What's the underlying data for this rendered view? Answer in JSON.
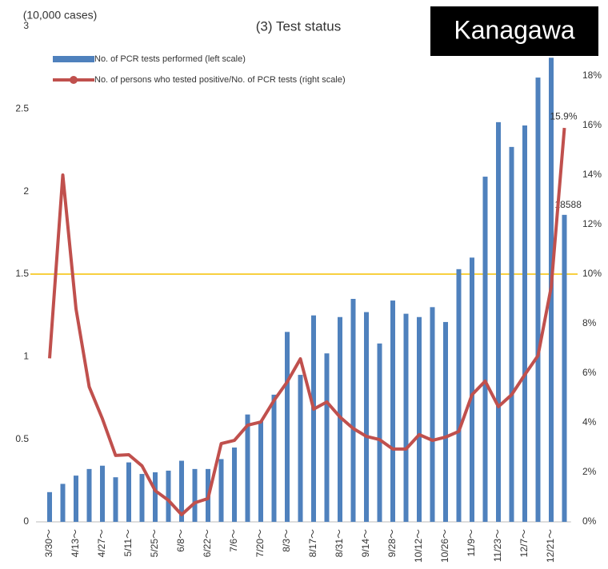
{
  "chart_data": {
    "type": "combo",
    "title": "(3) Test status",
    "badge": "Kanagawa",
    "ylabel": "(10,000 cases)",
    "categories": [
      "3/30～",
      null,
      "4/13～",
      null,
      "4/27～",
      null,
      "5/11～",
      null,
      "5/25～",
      null,
      "6/8～",
      null,
      "6/22～",
      null,
      "7/6～",
      null,
      "7/20～",
      null,
      "8/3～",
      null,
      "8/17～",
      null,
      "8/31～",
      null,
      "9/14～",
      null,
      "9/28～",
      null,
      "10/12～",
      null,
      "10/26～",
      null,
      "11/9～",
      null,
      "11/23～",
      null,
      "12/7～",
      null,
      "12/21～",
      null
    ],
    "series": [
      {
        "name": "No. of PCR tests performed (left scale)",
        "type": "bar",
        "color": "#4f81bd",
        "values": [
          0.18,
          0.23,
          0.28,
          0.32,
          0.34,
          0.27,
          0.36,
          0.29,
          0.3,
          0.31,
          0.37,
          0.32,
          0.32,
          0.38,
          0.45,
          0.65,
          0.61,
          0.77,
          1.15,
          0.89,
          1.25,
          1.02,
          1.24,
          1.35,
          1.27,
          1.08,
          1.34,
          1.26,
          1.24,
          1.3,
          1.21,
          1.53,
          1.6,
          2.09,
          2.42,
          2.27,
          2.4,
          2.69,
          2.81,
          1.8588
        ],
        "value_labels": [
          null,
          null,
          null,
          null,
          null,
          null,
          null,
          null,
          null,
          null,
          null,
          null,
          null,
          null,
          null,
          null,
          null,
          null,
          null,
          null,
          null,
          null,
          null,
          null,
          null,
          null,
          null,
          null,
          null,
          null,
          null,
          null,
          null,
          null,
          null,
          null,
          null,
          null,
          null,
          "18588"
        ]
      },
      {
        "name": "No. of persons who tested positive/No. of PCR tests (right scale)",
        "type": "line",
        "axis": "y2",
        "color": "#c0504d",
        "values": [
          6.6,
          14.0,
          8.6,
          5.45,
          4.16,
          2.68,
          2.71,
          2.26,
          1.26,
          0.87,
          0.29,
          0.77,
          0.94,
          3.16,
          3.29,
          3.9,
          4.03,
          4.9,
          5.65,
          6.58,
          4.55,
          4.84,
          4.23,
          3.77,
          3.45,
          3.32,
          2.94,
          2.94,
          3.52,
          3.29,
          3.42,
          3.65,
          5.13,
          5.68,
          4.65,
          5.13,
          5.94,
          6.71,
          9.48,
          15.9
        ],
        "value_labels": [
          null,
          null,
          null,
          null,
          null,
          null,
          null,
          null,
          null,
          null,
          null,
          null,
          null,
          null,
          null,
          null,
          null,
          null,
          null,
          null,
          null,
          null,
          null,
          null,
          null,
          null,
          null,
          null,
          null,
          null,
          null,
          null,
          null,
          null,
          null,
          null,
          null,
          null,
          null,
          "15.9%"
        ]
      }
    ],
    "ylim": [
      0,
      3
    ],
    "yticks": [
      0,
      0.5,
      1,
      1.5,
      2,
      2.5,
      3
    ],
    "y2lim": [
      0,
      20
    ],
    "y2ticks": [
      {
        "value": 0,
        "label": "0%"
      },
      {
        "value": 2,
        "label": "2%"
      },
      {
        "value": 4,
        "label": "4%"
      },
      {
        "value": 6,
        "label": "6%"
      },
      {
        "value": 8,
        "label": "8%"
      },
      {
        "value": 10,
        "label": "10%"
      },
      {
        "value": 12,
        "label": "12%"
      },
      {
        "value": 14,
        "label": "14%"
      },
      {
        "value": 16,
        "label": "16%"
      },
      {
        "value": 18,
        "label": "18%"
      }
    ],
    "reference_line": {
      "value": 10,
      "axis": "y2",
      "color": "#f5c000"
    },
    "grid": false,
    "legend": "upper left"
  }
}
